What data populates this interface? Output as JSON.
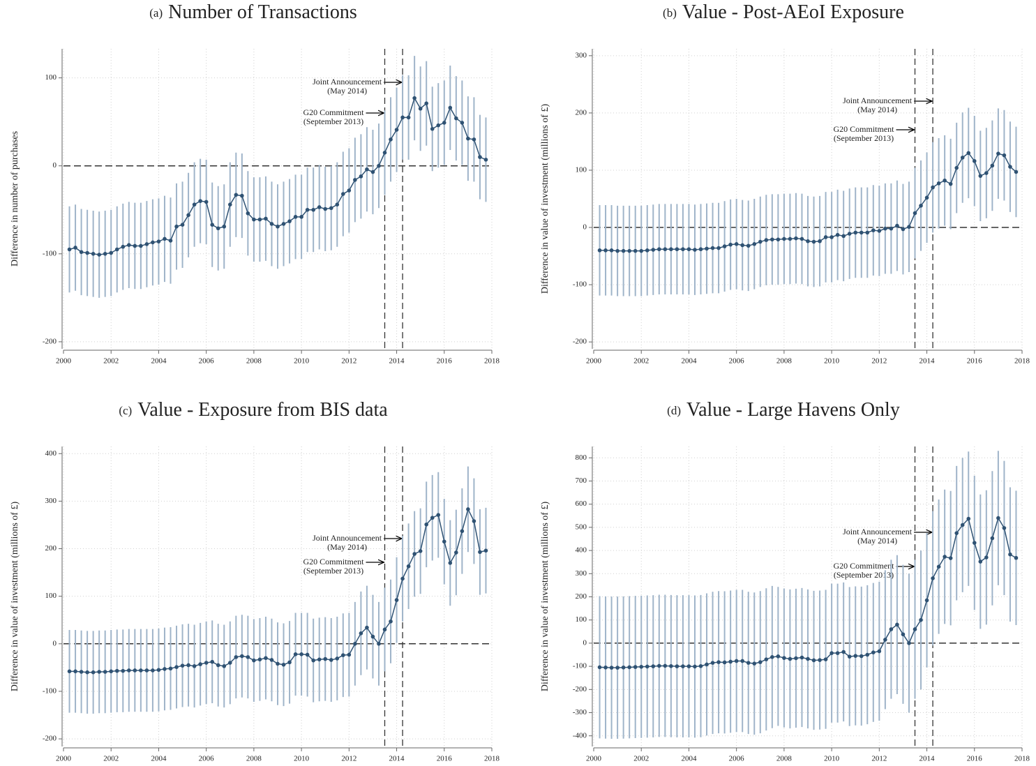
{
  "chart_data": [
    {
      "type": "line",
      "label": "(a)",
      "title": "Number of Transactions",
      "ylabel": "Difference in number of purchases",
      "x": [
        2000.25,
        2000.5,
        2000.75,
        2001,
        2001.25,
        2001.5,
        2001.75,
        2002,
        2002.25,
        2002.5,
        2002.75,
        2003,
        2003.25,
        2003.5,
        2003.75,
        2004,
        2004.25,
        2004.5,
        2004.75,
        2005,
        2005.25,
        2005.5,
        2005.75,
        2006,
        2006.25,
        2006.5,
        2006.75,
        2007,
        2007.25,
        2007.5,
        2007.75,
        2008,
        2008.25,
        2008.5,
        2008.75,
        2009,
        2009.25,
        2009.5,
        2009.75,
        2010,
        2010.25,
        2010.5,
        2010.75,
        2011,
        2011.25,
        2011.5,
        2011.75,
        2012,
        2012.25,
        2012.5,
        2012.75,
        2013,
        2013.25,
        2013.5,
        2013.75,
        2014,
        2014.25,
        2014.5,
        2014.75,
        2015,
        2015.25,
        2015.5,
        2015.75,
        2016,
        2016.25,
        2016.5,
        2016.75,
        2017,
        2017.25,
        2017.5,
        2017.75
      ],
      "values": [
        -95,
        -93,
        -98,
        -99,
        -100,
        -101,
        -100,
        -99,
        -95,
        -92,
        -90,
        -91,
        -91,
        -89,
        -87,
        -86,
        -83,
        -85,
        -69,
        -67,
        -56,
        -44,
        -40,
        -41,
        -67,
        -71,
        -69,
        -44,
        -33,
        -34,
        -54,
        -61,
        -61,
        -60,
        -66,
        -69,
        -66,
        -63,
        -58,
        -58,
        -50,
        -50,
        -47,
        -49,
        -48,
        -44,
        -32,
        -28,
        -16,
        -12,
        -4,
        -7,
        0,
        15,
        30,
        41,
        55,
        55,
        77,
        65,
        71,
        42,
        46,
        49,
        66,
        54,
        49,
        31,
        30,
        10,
        7
      ],
      "errors": [
        49,
        49,
        49,
        49,
        49,
        49,
        49,
        49,
        49,
        49,
        49,
        49,
        49,
        49,
        49,
        49,
        49,
        49,
        49,
        49,
        48,
        48,
        48,
        48,
        48,
        48,
        48,
        48,
        48,
        48,
        48,
        48,
        48,
        48,
        48,
        48,
        48,
        48,
        48,
        48,
        48,
        48,
        48,
        48,
        48,
        48,
        48,
        48,
        48,
        48,
        48,
        48,
        48,
        48,
        48,
        48,
        48,
        48,
        48,
        48,
        48,
        48,
        48,
        48,
        48,
        48,
        48,
        48,
        48,
        48,
        48
      ],
      "color": "#2f5273",
      "error_color": "#9fb4c9",
      "xlim": [
        2000,
        2018
      ],
      "ylim": [
        -208,
        133
      ],
      "xticks": [
        2000,
        2002,
        2004,
        2006,
        2008,
        2010,
        2012,
        2014,
        2016,
        2018
      ],
      "yticks": [
        -200,
        -100,
        0,
        100
      ],
      "grid": true,
      "hline": 0,
      "events": [
        {
          "x": 2014.25,
          "label": "Joint Announcement",
          "sublabel": "(May 2014)"
        },
        {
          "x": 2013.5,
          "label": "G20 Commitment",
          "sublabel": "(September 2013)"
        }
      ]
    },
    {
      "type": "line",
      "label": "(b)",
      "title": "Value - Post-AEoI Exposure",
      "ylabel": "Difference in value of investment (millions of £)",
      "x": [
        2000.25,
        2000.5,
        2000.75,
        2001,
        2001.25,
        2001.5,
        2001.75,
        2002,
        2002.25,
        2002.5,
        2002.75,
        2003,
        2003.25,
        2003.5,
        2003.75,
        2004,
        2004.25,
        2004.5,
        2004.75,
        2005,
        2005.25,
        2005.5,
        2005.75,
        2006,
        2006.25,
        2006.5,
        2006.75,
        2007,
        2007.25,
        2007.5,
        2007.75,
        2008,
        2008.25,
        2008.5,
        2008.75,
        2009,
        2009.25,
        2009.5,
        2009.75,
        2010,
        2010.25,
        2010.5,
        2010.75,
        2011,
        2011.25,
        2011.5,
        2011.75,
        2012,
        2012.25,
        2012.5,
        2012.75,
        2013,
        2013.25,
        2013.5,
        2013.75,
        2014,
        2014.25,
        2014.5,
        2014.75,
        2015,
        2015.25,
        2015.5,
        2015.75,
        2016,
        2016.25,
        2016.5,
        2016.75,
        2017,
        2017.25,
        2017.5,
        2017.75
      ],
      "values": [
        -40,
        -40,
        -40,
        -41,
        -41,
        -41,
        -41,
        -41,
        -40,
        -39,
        -38,
        -38,
        -38,
        -38,
        -38,
        -38,
        -39,
        -38,
        -37,
        -36,
        -36,
        -33,
        -30,
        -29,
        -31,
        -32,
        -29,
        -25,
        -22,
        -21,
        -21,
        -20,
        -20,
        -19,
        -20,
        -24,
        -25,
        -24,
        -17,
        -17,
        -13,
        -15,
        -11,
        -9,
        -9,
        -9,
        -5,
        -6,
        -2,
        -2,
        3,
        -3,
        1,
        25,
        38,
        52,
        70,
        77,
        82,
        76,
        104,
        122,
        130,
        116,
        90,
        95,
        108,
        129,
        126,
        106,
        97
      ],
      "errors": [
        79,
        79,
        79,
        79,
        79,
        79,
        79,
        79,
        79,
        79,
        79,
        79,
        79,
        79,
        79,
        79,
        79,
        79,
        79,
        79,
        79,
        79,
        79,
        79,
        79,
        79,
        79,
        79,
        79,
        79,
        79,
        79,
        79,
        79,
        79,
        79,
        79,
        79,
        79,
        79,
        79,
        79,
        79,
        79,
        79,
        79,
        79,
        79,
        79,
        79,
        79,
        79,
        79,
        79,
        79,
        79,
        79,
        79,
        79,
        79,
        79,
        79,
        79,
        79,
        79,
        79,
        79,
        79,
        79,
        79,
        79
      ],
      "color": "#2f5273",
      "error_color": "#9fb4c9",
      "xlim": [
        2000,
        2018
      ],
      "ylim": [
        -212,
        312
      ],
      "xticks": [
        2000,
        2002,
        2004,
        2006,
        2008,
        2010,
        2012,
        2014,
        2016,
        2018
      ],
      "yticks": [
        -200,
        -100,
        0,
        100,
        200,
        300
      ],
      "grid": true,
      "hline": 0,
      "events": [
        {
          "x": 2014.25,
          "label": "Joint Announcement",
          "sublabel": "(May 2014)"
        },
        {
          "x": 2013.5,
          "label": "G20 Commitment",
          "sublabel": "(September 2013)"
        }
      ]
    },
    {
      "type": "line",
      "label": "(c)",
      "title": "Value - Exposure from BIS data",
      "ylabel": "Difference in value of investment (millions of £)",
      "x": [
        2000.25,
        2000.5,
        2000.75,
        2001,
        2001.25,
        2001.5,
        2001.75,
        2002,
        2002.25,
        2002.5,
        2002.75,
        2003,
        2003.25,
        2003.5,
        2003.75,
        2004,
        2004.25,
        2004.5,
        2004.75,
        2005,
        2005.25,
        2005.5,
        2005.75,
        2006,
        2006.25,
        2006.5,
        2006.75,
        2007,
        2007.25,
        2007.5,
        2007.75,
        2008,
        2008.25,
        2008.5,
        2008.75,
        2009,
        2009.25,
        2009.5,
        2009.75,
        2010,
        2010.25,
        2010.5,
        2010.75,
        2011,
        2011.25,
        2011.5,
        2011.75,
        2012,
        2012.25,
        2012.5,
        2012.75,
        2013,
        2013.25,
        2013.5,
        2013.75,
        2014,
        2014.25,
        2014.5,
        2014.75,
        2015,
        2015.25,
        2015.5,
        2015.75,
        2016,
        2016.25,
        2016.5,
        2016.75,
        2017,
        2017.25,
        2017.5,
        2017.75
      ],
      "values": [
        -58,
        -58,
        -59,
        -60,
        -60,
        -59,
        -59,
        -58,
        -57,
        -57,
        -56,
        -56,
        -56,
        -56,
        -56,
        -55,
        -53,
        -52,
        -49,
        -46,
        -45,
        -47,
        -43,
        -40,
        -38,
        -45,
        -47,
        -40,
        -28,
        -26,
        -28,
        -35,
        -33,
        -30,
        -34,
        -42,
        -44,
        -39,
        -22,
        -22,
        -23,
        -35,
        -33,
        -32,
        -34,
        -31,
        -24,
        -23,
        0,
        22,
        34,
        15,
        0,
        30,
        47,
        92,
        137,
        163,
        189,
        195,
        251,
        265,
        271,
        215,
        170,
        192,
        237,
        283,
        258,
        193,
        196
      ],
      "errors": [
        87,
        87,
        87,
        87,
        87,
        87,
        87,
        87,
        87,
        87,
        87,
        87,
        87,
        87,
        87,
        87,
        87,
        87,
        87,
        87,
        87,
        87,
        87,
        87,
        87,
        87,
        87,
        87,
        87,
        87,
        87,
        87,
        87,
        87,
        87,
        87,
        87,
        87,
        87,
        87,
        88,
        88,
        88,
        88,
        88,
        88,
        88,
        88,
        88,
        88,
        88,
        88,
        88,
        88,
        88,
        90,
        90,
        90,
        90,
        90,
        90,
        90,
        90,
        90,
        90,
        90,
        90,
        90,
        90,
        90,
        90
      ],
      "color": "#2f5273",
      "error_color": "#9fb4c9",
      "xlim": [
        2000,
        2018
      ],
      "ylim": [
        -216,
        415
      ],
      "xticks": [
        2000,
        2002,
        2004,
        2006,
        2008,
        2010,
        2012,
        2014,
        2016,
        2018
      ],
      "yticks": [
        -200,
        -100,
        0,
        100,
        200,
        300,
        400
      ],
      "grid": true,
      "hline": 0,
      "events": [
        {
          "x": 2014.25,
          "label": "Joint Announcement",
          "sublabel": "(May 2014)"
        },
        {
          "x": 2013.5,
          "label": "G20 Commitment",
          "sublabel": "(September 2013)"
        }
      ]
    },
    {
      "type": "line",
      "label": "(d)",
      "title": "Value - Large Havens Only",
      "ylabel": "Difference in value of investment (millions of £)",
      "x": [
        2000.25,
        2000.5,
        2000.75,
        2001,
        2001.25,
        2001.5,
        2001.75,
        2002,
        2002.25,
        2002.5,
        2002.75,
        2003,
        2003.25,
        2003.5,
        2003.75,
        2004,
        2004.25,
        2004.5,
        2004.75,
        2005,
        2005.25,
        2005.5,
        2005.75,
        2006,
        2006.25,
        2006.5,
        2006.75,
        2007,
        2007.25,
        2007.5,
        2007.75,
        2008,
        2008.25,
        2008.5,
        2008.75,
        2009,
        2009.25,
        2009.5,
        2009.75,
        2010,
        2010.25,
        2010.5,
        2010.75,
        2011,
        2011.25,
        2011.5,
        2011.75,
        2012,
        2012.25,
        2012.5,
        2012.75,
        2013,
        2013.25,
        2013.5,
        2013.75,
        2014,
        2014.25,
        2014.5,
        2014.75,
        2015,
        2015.25,
        2015.5,
        2015.75,
        2016,
        2016.25,
        2016.5,
        2016.75,
        2017,
        2017.25,
        2017.5,
        2017.75
      ],
      "values": [
        -104,
        -105,
        -106,
        -106,
        -105,
        -104,
        -103,
        -102,
        -101,
        -100,
        -98,
        -98,
        -99,
        -100,
        -100,
        -100,
        -101,
        -99,
        -92,
        -85,
        -82,
        -83,
        -80,
        -77,
        -77,
        -85,
        -88,
        -82,
        -70,
        -60,
        -57,
        -64,
        -68,
        -65,
        -62,
        -68,
        -74,
        -73,
        -70,
        -43,
        -43,
        -38,
        -58,
        -55,
        -56,
        -50,
        -40,
        -35,
        15,
        60,
        80,
        38,
        0,
        60,
        100,
        185,
        280,
        330,
        373,
        367,
        475,
        510,
        537,
        433,
        352,
        370,
        453,
        540,
        497,
        383,
        368
      ],
      "errors": [
        307,
        307,
        307,
        307,
        307,
        307,
        307,
        307,
        307,
        307,
        307,
        307,
        307,
        307,
        307,
        307,
        307,
        307,
        307,
        307,
        307,
        307,
        307,
        307,
        307,
        307,
        307,
        307,
        307,
        307,
        300,
        300,
        300,
        300,
        300,
        300,
        300,
        300,
        300,
        300,
        300,
        300,
        300,
        300,
        300,
        300,
        300,
        300,
        300,
        300,
        300,
        300,
        300,
        300,
        300,
        290,
        290,
        290,
        290,
        290,
        290,
        290,
        290,
        290,
        290,
        290,
        290,
        290,
        290,
        290,
        290
      ],
      "color": "#2f5273",
      "error_color": "#9fb4c9",
      "xlim": [
        2000,
        2018
      ],
      "ylim": [
        -446,
        849
      ],
      "xticks": [
        2000,
        2002,
        2004,
        2006,
        2008,
        2010,
        2012,
        2014,
        2016,
        2018
      ],
      "yticks": [
        -400,
        -300,
        -200,
        -100,
        0,
        100,
        200,
        300,
        400,
        500,
        600,
        700,
        800
      ],
      "grid": true,
      "hline": 0,
      "events": [
        {
          "x": 2014.25,
          "label": "Joint Announcement",
          "sublabel": "(May 2014)"
        },
        {
          "x": 2013.5,
          "label": "G20 Commitment",
          "sublabel": "(September 2013)"
        }
      ]
    }
  ]
}
